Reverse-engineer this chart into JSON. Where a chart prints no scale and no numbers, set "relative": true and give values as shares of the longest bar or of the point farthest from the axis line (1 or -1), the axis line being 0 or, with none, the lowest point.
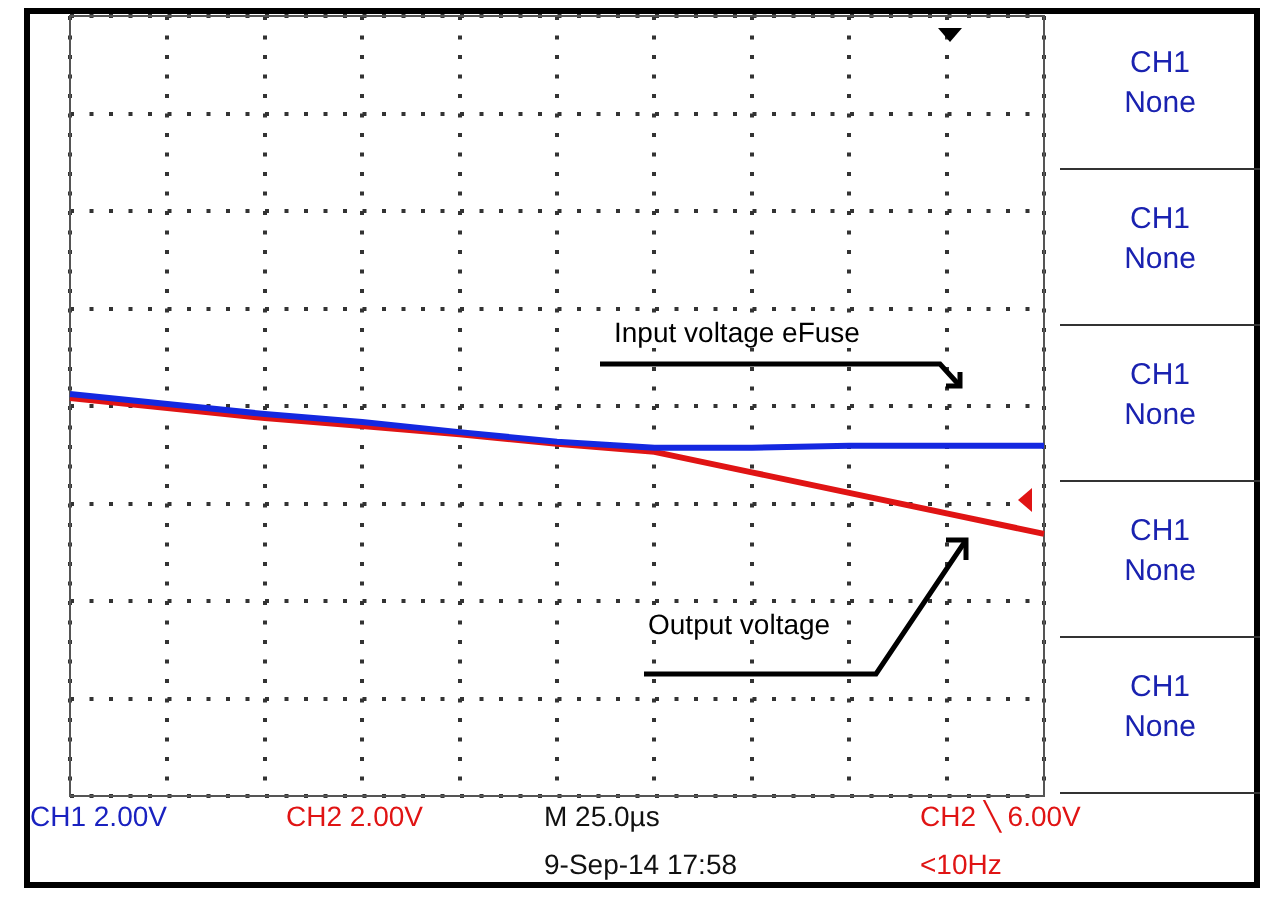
{
  "chart_data": {
    "type": "line",
    "relative": true,
    "grid": true,
    "line_style": "solid",
    "marker": "none",
    "legend": "right",
    "tick_labels": false,
    "categories": [
      null,
      null,
      null,
      null,
      null,
      null,
      null,
      null,
      null,
      null,
      null
    ],
    "series": [
      {
        "name": "Input voltage eFuse",
        "color": "#1428e0",
        "values": [
          1.0,
          0.975,
          0.95,
          0.93,
          0.905,
          0.881,
          0.866,
          0.866,
          0.871,
          0.871,
          0.871
        ]
      },
      {
        "name": "Output voltage",
        "color": "#e01414",
        "values": [
          0.99,
          0.965,
          0.94,
          0.92,
          0.9,
          0.876,
          0.856,
          0.805,
          0.754,
          0.703,
          0.652
        ]
      }
    ],
    "annotations": [
      "CH1 2.00V",
      "CH2 2.00V",
      "M 25.0µs",
      "CH2 ╲ 6.00V",
      "9-Sep-14 17:58",
      "<10Hz",
      "CH1 None",
      "CH1 None",
      "CH1 None",
      "CH1 None",
      "CH1 None"
    ]
  }
}
